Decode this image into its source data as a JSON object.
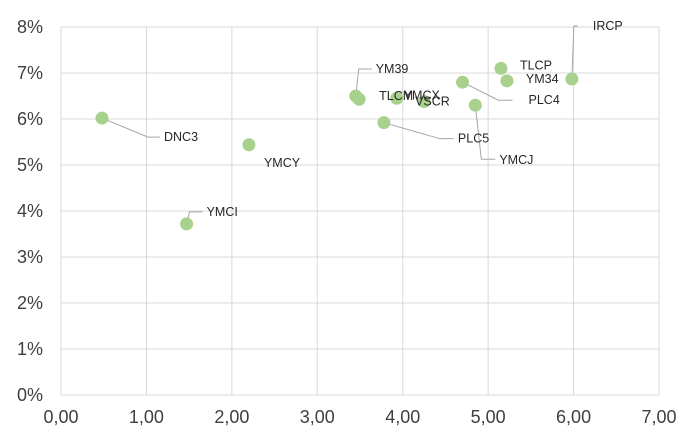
{
  "chart_data": {
    "type": "scatter",
    "title": "",
    "xlabel": "",
    "ylabel": "",
    "xlim": [
      0,
      7
    ],
    "ylim": [
      0,
      8
    ],
    "x_ticks": [
      "0,00",
      "1,00",
      "2,00",
      "3,00",
      "4,00",
      "5,00",
      "6,00",
      "7,00"
    ],
    "y_ticks": [
      "0%",
      "1%",
      "2%",
      "3%",
      "4%",
      "5%",
      "6%",
      "7%",
      "8%"
    ],
    "grid": true,
    "marker_color": "#a9d18e",
    "leader_color": "#a6a6a6",
    "gridline_color": "#d9d9d9",
    "points": [
      {
        "label": "DNC3",
        "x": 0.48,
        "y": 6.02
      },
      {
        "label": "YMCI",
        "x": 1.47,
        "y": 3.72
      },
      {
        "label": "YMCY",
        "x": 2.2,
        "y": 5.44
      },
      {
        "label": "YM39",
        "x": 3.45,
        "y": 6.5
      },
      {
        "label": "TLCM",
        "x": 3.49,
        "y": 6.43
      },
      {
        "label": "PLC5",
        "x": 3.78,
        "y": 5.92
      },
      {
        "label": "YMCX",
        "x": 3.93,
        "y": 6.45
      },
      {
        "label": "VSCR",
        "x": 4.25,
        "y": 6.38
      },
      {
        "label": "PLC4",
        "x": 4.7,
        "y": 6.8
      },
      {
        "label": "YMCJ",
        "x": 4.85,
        "y": 6.3
      },
      {
        "label": "TLCP",
        "x": 5.15,
        "y": 7.1
      },
      {
        "label": "YM34",
        "x": 5.22,
        "y": 6.83
      },
      {
        "label": "IRCP",
        "x": 5.98,
        "y": 6.87
      }
    ]
  }
}
